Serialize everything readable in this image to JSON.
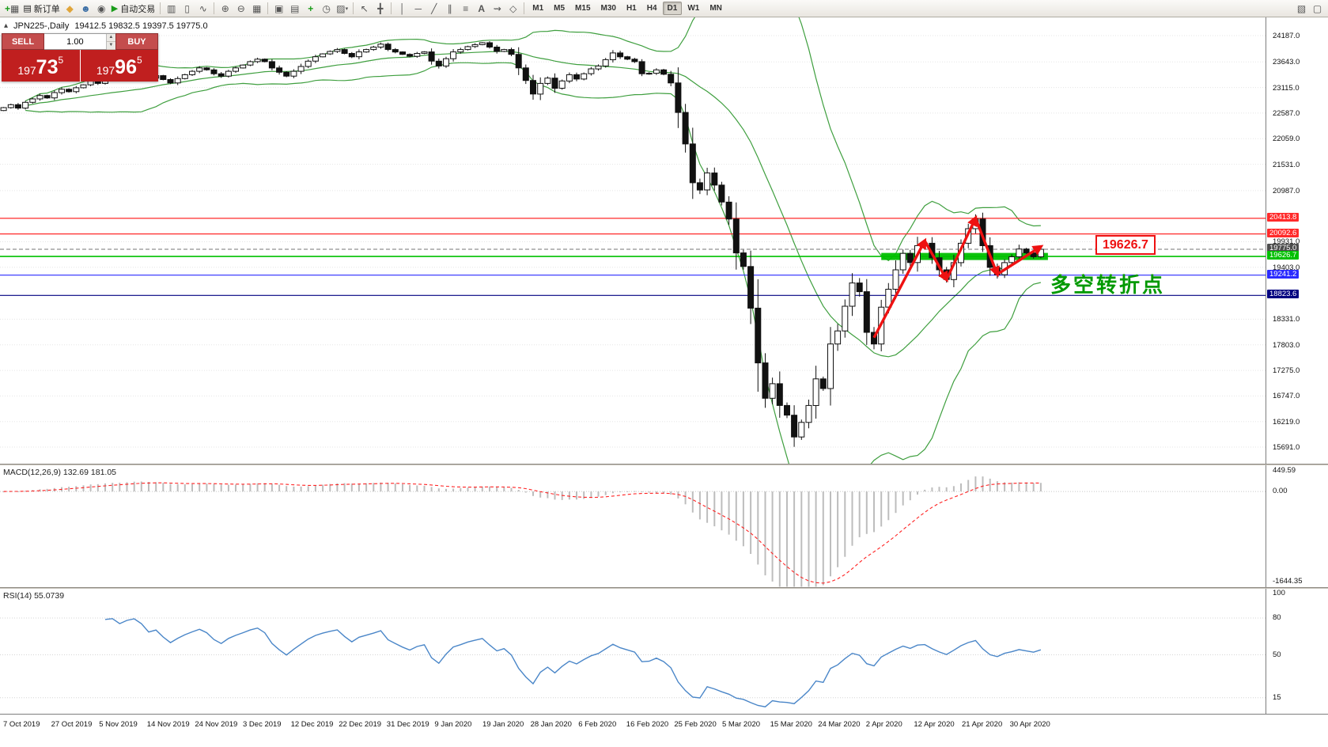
{
  "colors": {
    "toolbar_bg": "#f0eeea",
    "chart_bg": "#ffffff",
    "grid": "#e5e5e5",
    "candle": "#111111",
    "candle_up_fill": "#ffffff",
    "bollinger": "#3f9f3f",
    "macd_hist": "#bdbdbd",
    "macd_signal": "#ff2222",
    "rsi": "#4a86c8",
    "level_red": "#ff2a2a",
    "level_green": "#00c000",
    "level_blue": "#2a2aff",
    "level_navy": "#000080",
    "badge_current": "#4d4d4d",
    "annotation_green": "#009900",
    "annotation_red": "#ee1111",
    "sell_button": "#c44d4d",
    "price_box": "#c01f1f"
  },
  "toolbar": {
    "new_order_label": "新订单",
    "autotrading_label": "自动交易",
    "timeframes": [
      "M1",
      "M5",
      "M15",
      "M30",
      "H1",
      "H4",
      "D1",
      "W1",
      "MN"
    ],
    "active_timeframe": "D1"
  },
  "quote_header": {
    "symbol_line": "JPN225-,Daily",
    "ohlc": "19412.5 19832.5 19397.5 19775.0"
  },
  "trade_panel": {
    "sell_label": "SELL",
    "buy_label": "BUY",
    "volume": "1.00",
    "sell_price": "19773.5",
    "buy_price": "19796.5"
  },
  "chart_data": {
    "type": "candlestick",
    "symbol": "JPN225-",
    "timeframe": "Daily",
    "ohlc_header": {
      "open": 19412.5,
      "high": 19832.5,
      "low": 19397.5,
      "close": 19775.0
    },
    "price_axis": {
      "max": 24187.0,
      "min": 15691.0,
      "ticks": [
        24187.0,
        23643.0,
        23115.0,
        22587.0,
        22059.0,
        21531.0,
        20987.0,
        19931.0,
        19403.0,
        18331.0,
        17803.0,
        17275.0,
        16747.0,
        16219.0,
        15691.0
      ]
    },
    "levels": [
      {
        "price": 20413.8,
        "label": "20413.8",
        "color": "#ff2a2a",
        "style": "solid",
        "current": false
      },
      {
        "price": 20092.6,
        "label": "20092.6",
        "color": "#ff2a2a",
        "style": "solid",
        "current": false
      },
      {
        "price": 19775.0,
        "label": "19775.0",
        "color": "#909090",
        "style": "dash",
        "current": true
      },
      {
        "price": 19626.7,
        "label": "19626.7",
        "color": "#00c000",
        "style": "solid",
        "current": false
      },
      {
        "price": 19241.2,
        "label": "19241.2",
        "color": "#2a2aff",
        "style": "solid",
        "current": false
      },
      {
        "price": 18823.6,
        "label": "18823.6",
        "color": "#000080",
        "style": "solid",
        "current": false
      }
    ],
    "candles_close": [
      22700,
      22760,
      22690,
      22810,
      22880,
      22950,
      22900,
      23010,
      23080,
      23030,
      23110,
      23170,
      23250,
      23200,
      23300,
      23330,
      23280,
      23390,
      23450,
      23400,
      23310,
      23360,
      23280,
      23210,
      23300,
      23380,
      23450,
      23520,
      23480,
      23400,
      23350,
      23450,
      23520,
      23580,
      23650,
      23700,
      23650,
      23520,
      23430,
      23350,
      23450,
      23550,
      23660,
      23750,
      23810,
      23860,
      23900,
      23820,
      23750,
      23850,
      23900,
      23950,
      24010,
      23900,
      23850,
      23800,
      23760,
      23820,
      23850,
      23660,
      23560,
      23710,
      23850,
      23900,
      23960,
      24000,
      24040,
      23950,
      23860,
      23900,
      23800,
      23520,
      23260,
      22980,
      23200,
      23310,
      23100,
      23250,
      23380,
      23290,
      23400,
      23500,
      23560,
      23690,
      23830,
      23750,
      23700,
      23650,
      23400,
      23410,
      23480,
      23390,
      23210,
      22600,
      21950,
      21150,
      21000,
      21350,
      21100,
      20750,
      20400,
      19700,
      19420,
      18560,
      17430,
      16700,
      17000,
      16550,
      16350,
      15900,
      16200,
      16550,
      17100,
      16900,
      17820,
      18090,
      18600,
      19080,
      18900,
      18060,
      17820,
      18580,
      18950,
      19350,
      19690,
      19500,
      19850,
      19900,
      19600,
      19350,
      19150,
      19500,
      19900,
      20200,
      20400,
      19850,
      19400,
      19250,
      19500,
      19620,
      19780,
      19700,
      19620,
      19775
    ],
    "indicators": {
      "bollinger": {
        "period": 20,
        "deviation": 2
      },
      "macd": {
        "label": "MACD(12,26,9) 132.69 181.05",
        "params": [
          12,
          26,
          9
        ],
        "scale_max": 449.59,
        "scale_zero": "0.00",
        "scale_min": -1644.35
      },
      "rsi": {
        "label": "RSI(14) 55.0739",
        "period": 14,
        "value": 55.0739,
        "scale": [
          100,
          80,
          50,
          15
        ]
      }
    },
    "annotations": {
      "zigzag": [
        [
          120,
          17950
        ],
        [
          127,
          19950
        ],
        [
          130,
          19150
        ],
        [
          134,
          20420
        ],
        [
          137,
          19260
        ],
        [
          143,
          19830
        ]
      ],
      "band": {
        "price": 19626.7,
        "from_index": 121,
        "to_index": 144,
        "label": "19626.7"
      },
      "text": {
        "value": "多空转折点",
        "color": "#009900"
      }
    },
    "dates": [
      "7 Oct 2019",
      "27 Oct 2019",
      "5 Nov 2019",
      "14 Nov 2019",
      "24 Nov 2019",
      "3 Dec 2019",
      "12 Dec 2019",
      "22 Dec 2019",
      "31 Dec 2019",
      "9 Jan 2020",
      "19 Jan 2020",
      "28 Jan 2020",
      "6 Feb 2020",
      "16 Feb 2020",
      "25 Feb 2020",
      "5 Mar 2020",
      "15 Mar 2020",
      "24 Mar 2020",
      "2 Apr 2020",
      "12 Apr 2020",
      "21 Apr 2020",
      "30 Apr 2020"
    ]
  }
}
